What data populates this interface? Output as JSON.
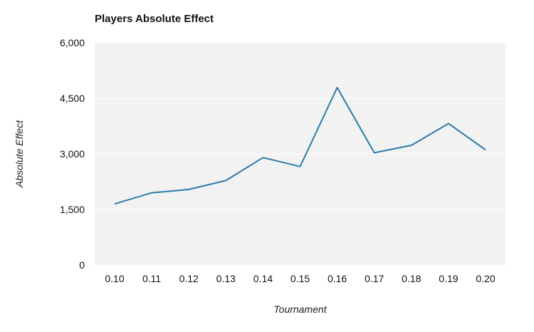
{
  "chart_data": {
    "type": "line",
    "title": "Players Absolute Effect",
    "xlabel": "Tournament",
    "ylabel": "Absolute Effect",
    "categories": [
      "0.10",
      "0.11",
      "0.12",
      "0.13",
      "0.14",
      "0.15",
      "0.16",
      "0.17",
      "0.18",
      "0.19",
      "0.20"
    ],
    "series": [
      {
        "values": [
          1650,
          1950,
          2040,
          2280,
          2900,
          2660,
          4790,
          3030,
          3230,
          3820,
          3110
        ]
      }
    ],
    "ylim": [
      0,
      6000
    ],
    "y_ticks": [
      0,
      1500,
      3000,
      4500,
      6000
    ],
    "y_tick_labels": [
      "0",
      "1,500",
      "3,000",
      "4,500",
      "6,000"
    ],
    "grid": true,
    "colors": {
      "line": "#2c7bab",
      "plot_background": "#f2f2f2",
      "gridline": "#ffffff"
    }
  }
}
